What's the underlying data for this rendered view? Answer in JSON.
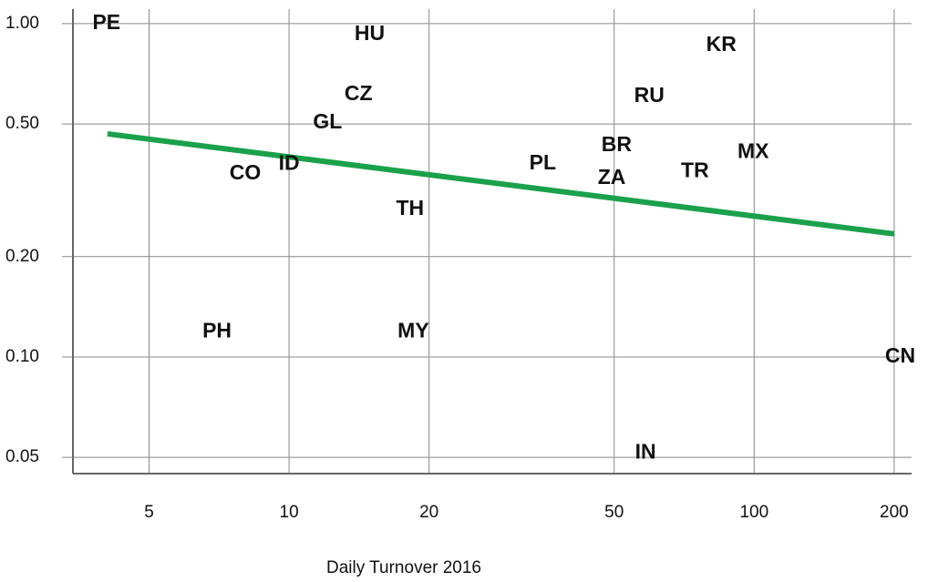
{
  "chart_data": {
    "type": "scatter",
    "x_label": "Daily Turnover 2016",
    "xscale": "log",
    "yscale": "log",
    "xlim": [
      3.43,
      218
    ],
    "ylim": [
      0.0447,
      1.105
    ],
    "xticks": [
      5,
      10,
      20,
      50,
      100,
      200
    ],
    "yticks": [
      {
        "value": 1,
        "label": "1.00"
      },
      {
        "value": 0.5,
        "label": "0.50"
      },
      {
        "value": 0.2,
        "label": "0.20"
      },
      {
        "value": 0.1,
        "label": "0.10"
      },
      {
        "value": 0.05,
        "label": "0.05"
      }
    ],
    "grid": true,
    "point_color": "#111111",
    "points": [
      {
        "label": "PE",
        "x": 4.05,
        "y": 1.0
      },
      {
        "label": "HU",
        "x": 14.9,
        "y": 0.927
      },
      {
        "label": "KR",
        "x": 85,
        "y": 0.86
      },
      {
        "label": "CZ",
        "x": 14.1,
        "y": 0.612
      },
      {
        "label": "RU",
        "x": 59.5,
        "y": 0.605
      },
      {
        "label": "GL",
        "x": 12.1,
        "y": 0.504
      },
      {
        "label": "BR",
        "x": 50.6,
        "y": 0.43
      },
      {
        "label": "MX",
        "x": 99.5,
        "y": 0.41
      },
      {
        "label": "PL",
        "x": 35.1,
        "y": 0.38
      },
      {
        "label": "ID",
        "x": 10,
        "y": 0.378
      },
      {
        "label": "CO",
        "x": 8.05,
        "y": 0.354
      },
      {
        "label": "TR",
        "x": 74.6,
        "y": 0.36
      },
      {
        "label": "ZA",
        "x": 49.4,
        "y": 0.343
      },
      {
        "label": "TH",
        "x": 18.2,
        "y": 0.277
      },
      {
        "label": "PH",
        "x": 7.0,
        "y": 0.119
      },
      {
        "label": "MY",
        "x": 18.5,
        "y": 0.119
      },
      {
        "label": "CN",
        "x": 206,
        "y": 0.1
      },
      {
        "label": "IN",
        "x": 58.4,
        "y": 0.0516
      }
    ],
    "trend": {
      "color": "#1aa14a",
      "x": [
        4.07,
        200
      ],
      "y": [
        0.467,
        0.234
      ]
    }
  }
}
